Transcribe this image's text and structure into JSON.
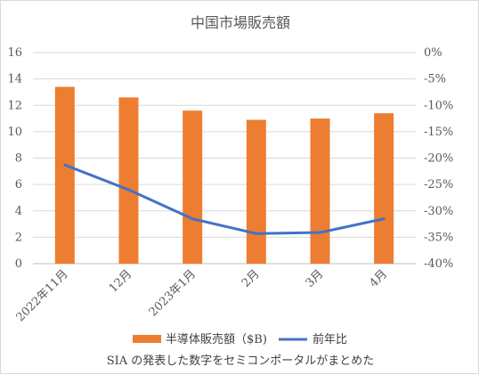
{
  "chart_data": {
    "type": "bar",
    "title": "中国市場販売額",
    "categories": [
      "2022年11月",
      "12月",
      "2023年1月",
      "2月",
      "3月",
      "4月"
    ],
    "series": [
      {
        "name": "半導体販売額（$B)",
        "type": "bar",
        "axis": "left",
        "color": "#ED7D31",
        "values": [
          13.4,
          12.6,
          11.6,
          10.9,
          11.0,
          11.4
        ]
      },
      {
        "name": "前年比",
        "type": "line",
        "axis": "right",
        "color": "#4472C4",
        "values": [
          -21.3,
          -26.0,
          -31.5,
          -34.3,
          -34.1,
          -31.5
        ]
      }
    ],
    "left_axis": {
      "ylim": [
        0,
        16
      ],
      "ticks": [
        "0",
        "2",
        "4",
        "6",
        "8",
        "10",
        "12",
        "14",
        "16"
      ]
    },
    "right_axis": {
      "ylim": [
        -40,
        0
      ],
      "ticks": [
        "0%",
        "-5%",
        "-10%",
        "-15%",
        "-20%",
        "-25%",
        "-30%",
        "-35%",
        "-40%"
      ]
    },
    "grid": true,
    "legend_position": "bottom",
    "footnote": "SIA の発表した数字をセミコンポータルがまとめた"
  }
}
